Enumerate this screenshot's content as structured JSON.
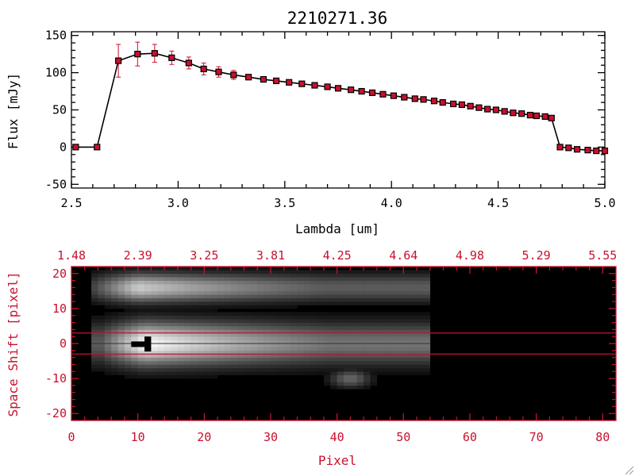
{
  "chart_data": [
    {
      "type": "line",
      "title": "2210271.36",
      "xlabel": "Lambda [um]",
      "ylabel": "Flux [mJy]",
      "xlim": [
        2.5,
        5.0
      ],
      "ylim": [
        -55,
        155
      ],
      "xticks": [
        "2.5",
        "3.0",
        "3.5",
        "4.0",
        "4.5",
        "5.0"
      ],
      "yticks": [
        "-50",
        "0",
        "50",
        "100",
        "150"
      ],
      "series": [
        {
          "name": "flux",
          "marker": "square",
          "marker_color": "#c8102e",
          "line_color": "#000000",
          "x": [
            2.52,
            2.62,
            2.72,
            2.81,
            2.89,
            2.97,
            3.05,
            3.12,
            3.19,
            3.26,
            3.33,
            3.4,
            3.46,
            3.52,
            3.58,
            3.64,
            3.7,
            3.75,
            3.81,
            3.86,
            3.91,
            3.96,
            4.01,
            4.06,
            4.11,
            4.15,
            4.2,
            4.24,
            4.29,
            4.33,
            4.37,
            4.41,
            4.45,
            4.49,
            4.53,
            4.57,
            4.61,
            4.65,
            4.68,
            4.72,
            4.75,
            4.79,
            4.83,
            4.87,
            4.92,
            4.96,
            5.0
          ],
          "y": [
            0,
            0,
            116,
            125,
            126,
            120,
            113,
            105,
            101,
            97,
            94,
            91,
            89,
            87,
            85,
            83,
            81,
            79,
            77,
            75,
            73,
            71,
            69,
            67,
            65,
            64,
            62,
            60,
            58,
            57,
            55,
            53,
            51,
            50,
            48,
            46,
            45,
            43,
            42,
            41,
            39,
            0,
            -1,
            -3,
            -4,
            -5,
            -5
          ],
          "errors": [
            0,
            0,
            22,
            16,
            12,
            9,
            8,
            8,
            7,
            6,
            3,
            2,
            2,
            2,
            2,
            2,
            2,
            2,
            2,
            2,
            2,
            2,
            2,
            2,
            2,
            2,
            2,
            2,
            2,
            2,
            2,
            2,
            2,
            2,
            2,
            2,
            2,
            2,
            2,
            2,
            2,
            2,
            2,
            2,
            2,
            2,
            2
          ]
        }
      ]
    },
    {
      "type": "heatmap",
      "xlabel": "Pixel",
      "ylabel": "Space Shift [pixel]",
      "xlim": [
        0,
        82
      ],
      "ylim": [
        -22,
        22
      ],
      "xticks": [
        "0",
        "10",
        "20",
        "30",
        "40",
        "50",
        "60",
        "70",
        "80"
      ],
      "yticks": [
        "-20",
        "-10",
        "0",
        "10",
        "20"
      ],
      "top_ticks": [
        "1.48",
        "2.39",
        "3.25",
        "3.81",
        "4.25",
        "4.64",
        "4.98",
        "5.29",
        "5.55"
      ],
      "extraction_window": [
        -3,
        3
      ],
      "axis_color": "#c8102e",
      "source_features": [
        {
          "name": "main-trace",
          "x_range": [
            3,
            54
          ],
          "y_center": 0,
          "halfwidth": 6,
          "peak_x": 11,
          "peak": 1.0
        },
        {
          "name": "secondary-trace",
          "x_range": [
            3,
            54
          ],
          "y_center": 16,
          "halfwidth": 4,
          "peak_x": 10,
          "peak": 0.8
        },
        {
          "name": "faint-blob",
          "x_range": [
            38,
            47
          ],
          "y_center": -10,
          "halfwidth": 2.5,
          "peak_x": 42,
          "peak": 0.4
        }
      ]
    }
  ]
}
